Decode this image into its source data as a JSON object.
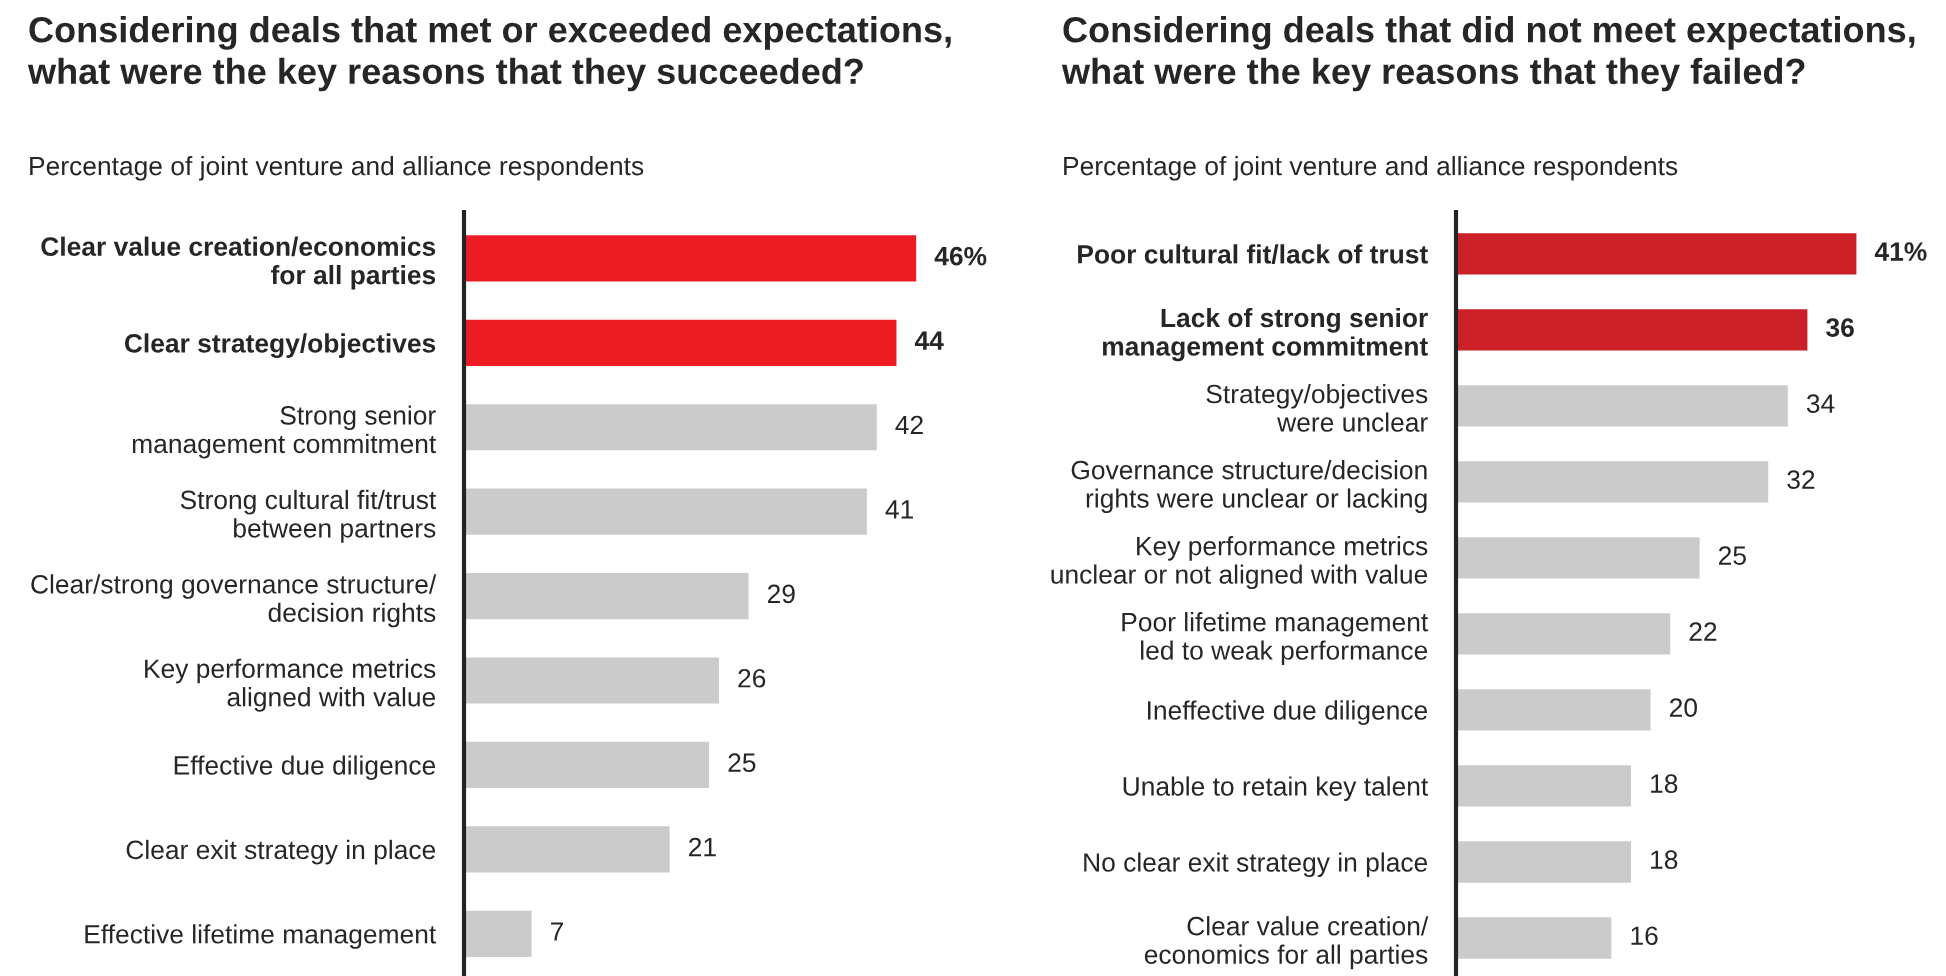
{
  "chart_data": [
    {
      "type": "bar",
      "orientation": "horizontal",
      "title": "Considering deals that met or exceeded expectations,\nwhat were the key reasons that they succeeded?",
      "subtitle": "Percentage of joint venture and alliance respondents",
      "categories": [
        "Clear value creation/economics\nfor all parties",
        "Clear strategy/objectives",
        "Strong senior\nmanagement commitment",
        "Strong cultural fit/trust\nbetween partners",
        "Clear/strong governance structure/\ndecision rights",
        "Key performance metrics\naligned with value",
        "Effective due diligence",
        "Clear exit strategy in place",
        "Effective lifetime management"
      ],
      "values": [
        46,
        44,
        42,
        41,
        29,
        26,
        25,
        21,
        7
      ],
      "value_labels": [
        "46%",
        "44",
        "42",
        "41",
        "29",
        "26",
        "25",
        "21",
        "7"
      ],
      "colors": [
        "#ed1c24",
        "#ed1c24",
        "#cbcbcb",
        "#cbcbcb",
        "#cbcbcb",
        "#cbcbcb",
        "#cbcbcb",
        "#cbcbcb",
        "#cbcbcb"
      ],
      "tick_labels": "y",
      "grid": false,
      "legend": false
    },
    {
      "type": "bar",
      "orientation": "horizontal",
      "title": "Considering deals that did not meet expectations,\nwhat were the key reasons that they failed?",
      "subtitle": "Percentage of joint venture and alliance respondents",
      "categories": [
        "Poor cultural fit/lack of trust",
        "Lack of strong senior\nmanagement commitment",
        "Strategy/objectives\nwere unclear",
        "Governance structure/decision\nrights were unclear or lacking",
        "Key performance metrics\nunclear or not aligned with value",
        "Poor lifetime management\nled to weak performance",
        "Ineffective due diligence",
        "Unable to retain key talent",
        "No clear exit strategy in place",
        "Clear value creation/\neconomics for all parties"
      ],
      "values": [
        41,
        36,
        34,
        32,
        25,
        22,
        20,
        18,
        18,
        16
      ],
      "value_labels": [
        "41%",
        "36",
        "34",
        "32",
        "25",
        "22",
        "20",
        "18",
        "18",
        "16"
      ],
      "colors": [
        "#cc2029",
        "#cc2029",
        "#cbcbcb",
        "#cbcbcb",
        "#cbcbcb",
        "#cbcbcb",
        "#cbcbcb",
        "#cbcbcb",
        "#cbcbcb",
        "#cbcbcb"
      ],
      "tick_labels": "y",
      "grid": false,
      "legend": false
    }
  ]
}
